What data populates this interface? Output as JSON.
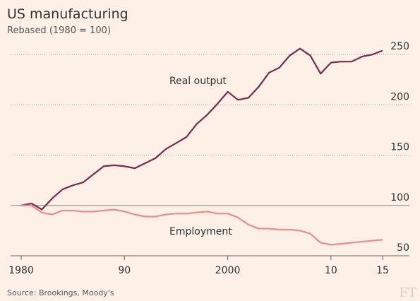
{
  "chart_data": {
    "type": "line",
    "title": "US manufacturing",
    "subtitle": "Rebased (1980 = 100)",
    "source": "Source: Brookings, Moody's",
    "logo": "FT",
    "annotations": [
      "Real output",
      "Employment"
    ],
    "x": [
      1980,
      1981,
      1982,
      1983,
      1984,
      1985,
      1986,
      1987,
      1988,
      1989,
      1990,
      1991,
      1992,
      1993,
      1994,
      1995,
      1996,
      1997,
      1998,
      1999,
      2000,
      2001,
      2002,
      2003,
      2004,
      2005,
      2006,
      2007,
      2008,
      2009,
      2010,
      2011,
      2012,
      2013,
      2014,
      2015
    ],
    "series": [
      {
        "name": "Real output",
        "color": "#7a2a4a",
        "values": [
          100,
          102,
          96,
          107,
          116,
          120,
          123,
          131,
          139,
          140,
          139,
          137,
          142,
          147,
          156,
          162,
          168,
          181,
          190,
          201,
          213,
          205,
          207,
          218,
          232,
          237,
          249,
          256,
          249,
          231,
          242,
          243,
          243,
          248,
          250,
          254
        ]
      },
      {
        "name": "Employment",
        "color": "#ee8a8e",
        "values": [
          100,
          100,
          93,
          91,
          95,
          95,
          94,
          94,
          95,
          96,
          94,
          91,
          89,
          89,
          91,
          92,
          92,
          93,
          94,
          92,
          92,
          88,
          81,
          77,
          77,
          76,
          76,
          75,
          72,
          63,
          61,
          62,
          63,
          64,
          65,
          66
        ]
      }
    ],
    "xlim": [
      1979,
      2017.5
    ],
    "xticks": [
      1980,
      {
        "value": 1990,
        "label": "90"
      },
      2000,
      {
        "value": 2010,
        "label": "10"
      },
      {
        "value": 2015,
        "label": "15"
      }
    ],
    "ylim": [
      50,
      260
    ],
    "yticks": [
      50,
      100,
      150,
      200,
      250
    ],
    "grid": true
  }
}
